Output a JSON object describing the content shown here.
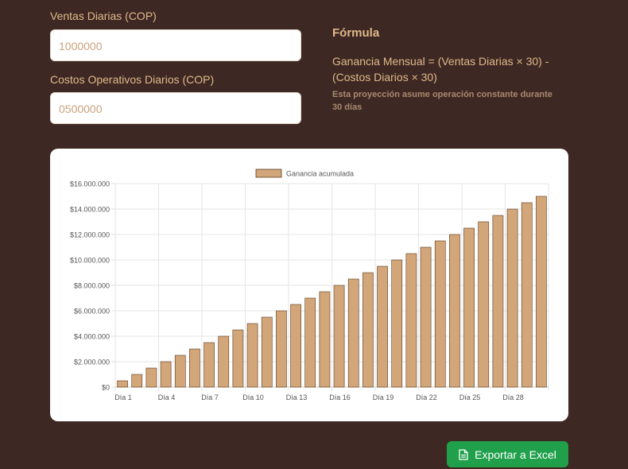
{
  "form": {
    "sales_label": "Ventas Diarias (COP)",
    "sales_value": "1000000",
    "costs_label": "Costos Operativos Diarios (COP)",
    "costs_value": "0500000"
  },
  "formula": {
    "title": "Fórmula",
    "text": "Ganancia Mensual = (Ventas Diarias × 30) - (Costos Diarios × 30)",
    "note": "Esta proyección asume operación constante durante 30 días"
  },
  "chart_data": {
    "type": "bar",
    "categories": [
      "Día 1",
      "Día 2",
      "Día 3",
      "Día 4",
      "Día 5",
      "Día 6",
      "Día 7",
      "Día 8",
      "Día 9",
      "Día 10",
      "Día 11",
      "Día 12",
      "Día 13",
      "Día 14",
      "Día 15",
      "Día 16",
      "Día 17",
      "Día 18",
      "Día 19",
      "Día 20",
      "Día 21",
      "Día 22",
      "Día 23",
      "Día 24",
      "Día 25",
      "Día 26",
      "Día 27",
      "Día 28",
      "Día 29",
      "Día 30"
    ],
    "series": [
      {
        "name": "Ganancia acumulada",
        "values": [
          500000,
          1000000,
          1500000,
          2000000,
          2500000,
          3000000,
          3500000,
          4000000,
          4500000,
          5000000,
          5500000,
          6000000,
          6500000,
          7000000,
          7500000,
          8000000,
          8500000,
          9000000,
          9500000,
          10000000,
          10500000,
          11000000,
          11500000,
          12000000,
          12500000,
          13000000,
          13500000,
          14000000,
          14500000,
          15000000
        ]
      }
    ],
    "ylim": [
      0,
      16000000
    ],
    "y_ticks": [
      "$0",
      "$2.000.000",
      "$4.000.000",
      "$6.000.000",
      "$8.000.000",
      "$10.000.000",
      "$12.000.000",
      "$14.000.000",
      "$16.000.000"
    ],
    "x_tick_labels": [
      "Día 1",
      "Día 4",
      "Día 7",
      "Día 10",
      "Día 13",
      "Día 16",
      "Día 19",
      "Día 22",
      "Día 25",
      "Día 28"
    ],
    "grid": true,
    "legend_position": "top",
    "bar_color": "#d2a679",
    "bar_border": "#5a3a22"
  },
  "export": {
    "label": "Exportar a Excel",
    "icon": "file-icon",
    "color": "#21a04c"
  }
}
